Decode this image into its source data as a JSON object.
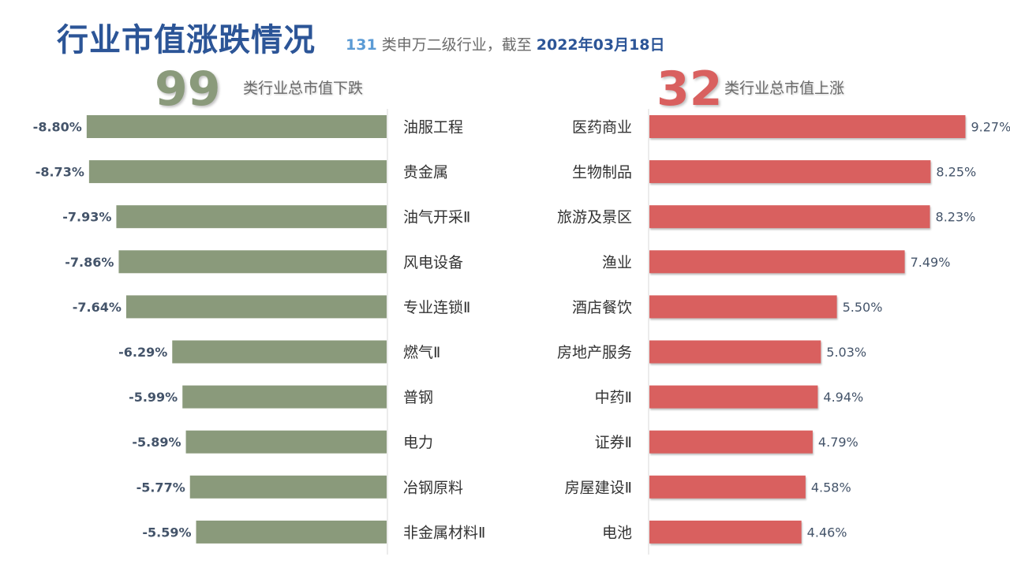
{
  "header": {
    "title": "行业市值涨跌情况",
    "count": "131",
    "subtitle_mid": " 类申万二级行业，截至 ",
    "date": "2022年03月18日"
  },
  "summary": {
    "down_count": "99",
    "down_label": "类行业总市值下跌",
    "up_count": "32",
    "up_label": "类行业总市值上涨"
  },
  "colors": {
    "down_bar": "#8a9a7b",
    "up_bar": "#d9605f"
  },
  "chart_data": [
    {
      "type": "bar",
      "orientation": "horizontal",
      "categories": [
        "油服工程",
        "贵金属",
        "油气开采Ⅱ",
        "风电设备",
        "专业连锁Ⅱ",
        "燃气Ⅱ",
        "普钢",
        "电力",
        "冶钢原料",
        "非金属材料Ⅱ"
      ],
      "values": [
        -8.8,
        -8.73,
        -7.93,
        -7.86,
        -7.64,
        -6.29,
        -5.99,
        -5.89,
        -5.77,
        -5.59
      ],
      "labels": [
        "-8.80%",
        "-8.73%",
        "-7.93%",
        "-7.86%",
        "-7.64%",
        "-6.29%",
        "-5.99%",
        "-5.89%",
        "-5.77%",
        "-5.59%"
      ],
      "unit": "%",
      "xlim": [
        -10,
        0
      ]
    },
    {
      "type": "bar",
      "orientation": "horizontal",
      "categories": [
        "医药商业",
        "生物制品",
        "旅游及景区",
        "渔业",
        "酒店餐饮",
        "房地产服务",
        "中药Ⅱ",
        "证券Ⅱ",
        "房屋建设Ⅱ",
        "电池"
      ],
      "values": [
        9.27,
        8.25,
        8.23,
        7.49,
        5.5,
        5.03,
        4.94,
        4.79,
        4.58,
        4.46
      ],
      "labels": [
        "9.27%",
        "8.25%",
        "8.23%",
        "7.49%",
        "5.50%",
        "5.03%",
        "4.94%",
        "4.79%",
        "4.58%",
        "4.46%"
      ],
      "unit": "%",
      "xlim": [
        0,
        10
      ]
    }
  ]
}
